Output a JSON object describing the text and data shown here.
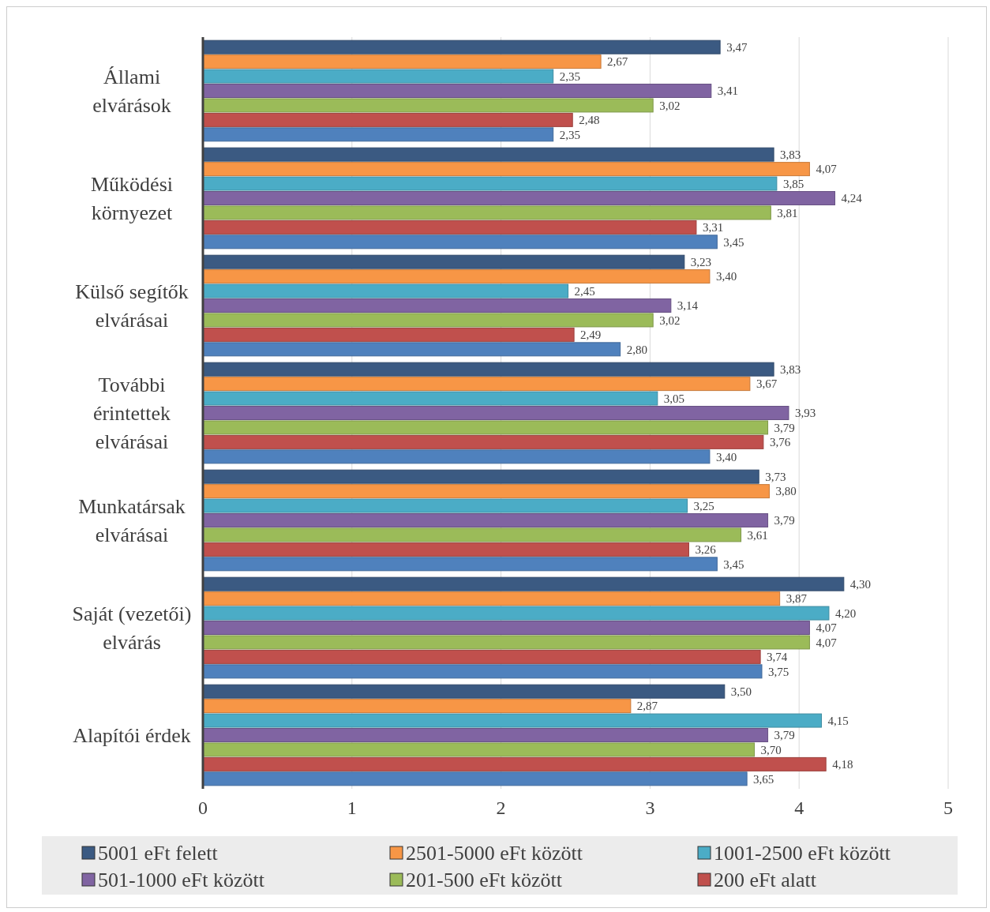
{
  "chart_data": {
    "type": "bar",
    "orientation": "horizontal",
    "categories": [
      "Állami elvárások",
      "Működési környezet",
      "Külső segítők elvárásai",
      "További érintettek elvárásai",
      "Munkatársak elvárásai",
      "Saját (vezetői) elvárás",
      "Alapítói érdek"
    ],
    "series": [
      {
        "name": "5001 eFt felett",
        "color": "#3b5a82",
        "values": [
          3.47,
          3.83,
          3.23,
          3.83,
          3.73,
          4.3,
          3.5
        ],
        "value_labels": [
          "3,47",
          "3,83",
          "3,23",
          "3,83",
          "3,73",
          "4,30",
          "3,50"
        ]
      },
      {
        "name": "2501-5000 eFt között",
        "color": "#f79646",
        "values": [
          2.67,
          4.07,
          3.4,
          3.67,
          3.8,
          3.87,
          2.87
        ],
        "value_labels": [
          "2,67",
          "4,07",
          "3,40",
          "3,67",
          "3,80",
          "3,87",
          "2,87"
        ]
      },
      {
        "name": "1001-2500 eFt között",
        "color": "#4bacc6",
        "values": [
          2.35,
          3.85,
          2.45,
          3.05,
          3.25,
          4.2,
          4.15
        ],
        "value_labels": [
          "2,35",
          "3,85",
          "2,45",
          "3,05",
          "3,25",
          "4,20",
          "4,15"
        ]
      },
      {
        "name": "501-1000 eFt között",
        "color": "#8064a2",
        "values": [
          3.41,
          4.24,
          3.14,
          3.93,
          3.79,
          4.07,
          3.79
        ],
        "value_labels": [
          "3,41",
          "4,24",
          "3,14",
          "3,93",
          "3,79",
          "4,07",
          "3,79"
        ]
      },
      {
        "name": "201-500 eFt között",
        "color": "#9bbb59",
        "values": [
          3.02,
          3.81,
          3.02,
          3.79,
          3.61,
          4.07,
          3.7
        ],
        "value_labels": [
          "3,02",
          "3,81",
          "3,02",
          "3,79",
          "3,61",
          "4,07",
          "3,70"
        ]
      },
      {
        "name": "200 eFt alatt",
        "color": "#c0504d",
        "values": [
          2.48,
          3.31,
          2.49,
          3.76,
          3.26,
          3.74,
          4.18
        ],
        "value_labels": [
          "2,48",
          "3,31",
          "2,49",
          "3,76",
          "3,26",
          "3,74",
          "4,18"
        ]
      },
      {
        "color": "#4f81bd",
        "values": [
          2.35,
          3.45,
          2.8,
          3.4,
          3.45,
          3.75,
          3.65
        ],
        "value_labels": [
          "2,35",
          "3,45",
          "2,80",
          "3,40",
          "3,45",
          "3,75",
          "3,65"
        ]
      }
    ],
    "xlim": [
      0,
      5
    ],
    "xticks": [
      0,
      1,
      2,
      3,
      4,
      5
    ],
    "grid": "x",
    "legend": "bottom"
  }
}
